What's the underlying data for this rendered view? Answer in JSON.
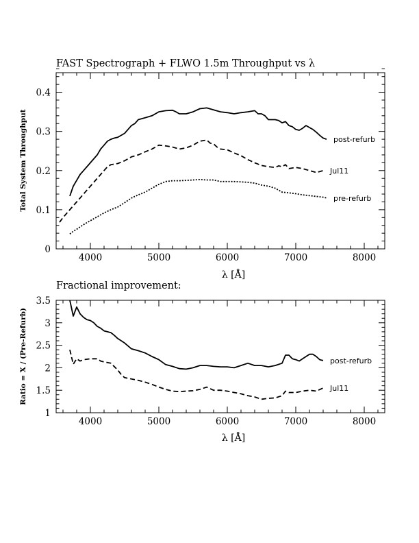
{
  "chart_data": [
    {
      "type": "line",
      "title": "FAST Spectrograph + FLWO 1.5m Throughput vs λ",
      "xlabel": "λ [Å]",
      "ylabel": "Total System Throughput",
      "xlim": [
        3500,
        8300
      ],
      "ylim": [
        0,
        0.45
      ],
      "xticks": [
        4000,
        5000,
        6000,
        7000,
        8000
      ],
      "xtick_labels": [
        "4000",
        "5000",
        "6000",
        "7000",
        "8000"
      ],
      "yticks": [
        0,
        0.1,
        0.2,
        0.3,
        0.4
      ],
      "ytick_labels": [
        "0",
        "0.1",
        "0.2",
        "0.3",
        "0.4"
      ],
      "grid": false,
      "series": [
        {
          "name": "post-refurb",
          "style": "solid",
          "x": [
            3700,
            3750,
            3800,
            3850,
            3900,
            3950,
            4000,
            4050,
            4100,
            4150,
            4200,
            4250,
            4300,
            4350,
            4400,
            4450,
            4500,
            4550,
            4600,
            4650,
            4700,
            4800,
            4900,
            5000,
            5100,
            5200,
            5250,
            5300,
            5400,
            5500,
            5600,
            5700,
            5800,
            5900,
            6000,
            6100,
            6200,
            6300,
            6400,
            6450,
            6500,
            6550,
            6600,
            6700,
            6750,
            6800,
            6850,
            6900,
            6950,
            7000,
            7050,
            7100,
            7150,
            7200,
            7250,
            7300,
            7350,
            7400,
            7450
          ],
          "y": [
            0.135,
            0.16,
            0.175,
            0.19,
            0.2,
            0.21,
            0.22,
            0.23,
            0.24,
            0.255,
            0.265,
            0.275,
            0.28,
            0.283,
            0.285,
            0.29,
            0.295,
            0.305,
            0.315,
            0.32,
            0.33,
            0.335,
            0.34,
            0.35,
            0.353,
            0.354,
            0.35,
            0.345,
            0.345,
            0.35,
            0.358,
            0.36,
            0.355,
            0.35,
            0.348,
            0.345,
            0.348,
            0.35,
            0.353,
            0.345,
            0.345,
            0.34,
            0.33,
            0.33,
            0.328,
            0.322,
            0.325,
            0.315,
            0.312,
            0.305,
            0.303,
            0.308,
            0.315,
            0.31,
            0.305,
            0.298,
            0.29,
            0.283,
            0.28
          ]
        },
        {
          "name": "Jul11",
          "style": "dashed",
          "x": [
            3550,
            3600,
            3650,
            3700,
            3750,
            3800,
            3850,
            3900,
            3950,
            4000,
            4050,
            4100,
            4150,
            4200,
            4250,
            4300,
            4400,
            4500,
            4600,
            4700,
            4800,
            4900,
            5000,
            5100,
            5200,
            5300,
            5400,
            5500,
            5600,
            5700,
            5750,
            5800,
            5850,
            5900,
            6000,
            6100,
            6200,
            6300,
            6400,
            6500,
            6600,
            6700,
            6750,
            6800,
            6850,
            6900,
            7000,
            7100,
            7200,
            7300,
            7400
          ],
          "y": [
            0.068,
            0.08,
            0.09,
            0.1,
            0.11,
            0.12,
            0.13,
            0.14,
            0.15,
            0.16,
            0.17,
            0.18,
            0.19,
            0.2,
            0.21,
            0.215,
            0.218,
            0.225,
            0.235,
            0.24,
            0.248,
            0.255,
            0.265,
            0.263,
            0.26,
            0.255,
            0.258,
            0.265,
            0.275,
            0.278,
            0.27,
            0.268,
            0.26,
            0.255,
            0.253,
            0.245,
            0.238,
            0.228,
            0.22,
            0.213,
            0.21,
            0.208,
            0.212,
            0.21,
            0.215,
            0.205,
            0.208,
            0.205,
            0.2,
            0.195,
            0.2
          ]
        },
        {
          "name": "pre-refurb",
          "style": "dotted",
          "x": [
            3700,
            3750,
            3800,
            3850,
            3900,
            3950,
            4000,
            4100,
            4200,
            4300,
            4400,
            4500,
            4600,
            4700,
            4800,
            4900,
            5000,
            5100,
            5200,
            5300,
            5400,
            5500,
            5600,
            5700,
            5800,
            5900,
            6000,
            6100,
            6200,
            6300,
            6400,
            6500,
            6600,
            6700,
            6800,
            6900,
            7000,
            7100,
            7200,
            7300,
            7400,
            7450
          ],
          "y": [
            0.038,
            0.045,
            0.05,
            0.056,
            0.062,
            0.067,
            0.072,
            0.082,
            0.092,
            0.1,
            0.107,
            0.118,
            0.13,
            0.138,
            0.145,
            0.155,
            0.165,
            0.172,
            0.174,
            0.174,
            0.175,
            0.176,
            0.177,
            0.176,
            0.176,
            0.172,
            0.172,
            0.172,
            0.171,
            0.17,
            0.168,
            0.163,
            0.16,
            0.155,
            0.145,
            0.143,
            0.141,
            0.138,
            0.136,
            0.134,
            0.132,
            0.13
          ]
        }
      ]
    },
    {
      "type": "line",
      "title": "Fractional improvement:",
      "xlabel": "λ [Å]",
      "ylabel": "Ratio = X / (Pre-Refurb)",
      "xlim": [
        3500,
        8300
      ],
      "ylim": [
        1,
        3.5
      ],
      "xticks": [
        4000,
        5000,
        6000,
        7000,
        8000
      ],
      "xtick_labels": [
        "4000",
        "5000",
        "6000",
        "7000",
        "8000"
      ],
      "yticks": [
        1,
        1.5,
        2,
        2.5,
        3,
        3.5
      ],
      "ytick_labels": [
        "1",
        "1.5",
        "2",
        "2.5",
        "3",
        "3.5"
      ],
      "grid": false,
      "series": [
        {
          "name": "post-refurb",
          "style": "solid",
          "x": [
            3700,
            3750,
            3800,
            3850,
            3900,
            3950,
            4000,
            4050,
            4100,
            4150,
            4200,
            4250,
            4300,
            4350,
            4400,
            4450,
            4500,
            4600,
            4700,
            4800,
            4900,
            5000,
            5100,
            5200,
            5300,
            5400,
            5500,
            5600,
            5700,
            5800,
            5900,
            6000,
            6100,
            6200,
            6300,
            6400,
            6500,
            6600,
            6700,
            6800,
            6850,
            6900,
            6950,
            7000,
            7050,
            7100,
            7150,
            7200,
            7250,
            7300,
            7350,
            7400
          ],
          "y": [
            3.5,
            3.15,
            3.35,
            3.2,
            3.12,
            3.07,
            3.05,
            3.0,
            2.92,
            2.88,
            2.82,
            2.8,
            2.78,
            2.72,
            2.65,
            2.6,
            2.55,
            2.42,
            2.38,
            2.33,
            2.25,
            2.18,
            2.07,
            2.03,
            1.98,
            1.97,
            2.0,
            2.05,
            2.05,
            2.03,
            2.02,
            2.02,
            2.0,
            2.05,
            2.1,
            2.05,
            2.05,
            2.02,
            2.05,
            2.1,
            2.28,
            2.28,
            2.2,
            2.18,
            2.15,
            2.2,
            2.25,
            2.3,
            2.3,
            2.25,
            2.18,
            2.16
          ]
        },
        {
          "name": "Jul11",
          "style": "dashed",
          "x": [
            3700,
            3750,
            3800,
            3850,
            3900,
            4000,
            4100,
            4150,
            4200,
            4300,
            4400,
            4450,
            4500,
            4600,
            4700,
            4800,
            4900,
            5000,
            5100,
            5200,
            5300,
            5400,
            5500,
            5600,
            5700,
            5800,
            5900,
            6000,
            6100,
            6200,
            6300,
            6400,
            6500,
            6600,
            6700,
            6800,
            6850,
            6900,
            7000,
            7100,
            7200,
            7300,
            7400
          ],
          "y": [
            2.4,
            2.08,
            2.2,
            2.15,
            2.18,
            2.2,
            2.2,
            2.15,
            2.13,
            2.1,
            1.95,
            1.85,
            1.78,
            1.75,
            1.72,
            1.68,
            1.63,
            1.57,
            1.52,
            1.48,
            1.47,
            1.48,
            1.49,
            1.52,
            1.57,
            1.5,
            1.5,
            1.48,
            1.45,
            1.42,
            1.38,
            1.35,
            1.3,
            1.32,
            1.33,
            1.38,
            1.48,
            1.45,
            1.45,
            1.48,
            1.5,
            1.48,
            1.55
          ]
        }
      ]
    }
  ]
}
